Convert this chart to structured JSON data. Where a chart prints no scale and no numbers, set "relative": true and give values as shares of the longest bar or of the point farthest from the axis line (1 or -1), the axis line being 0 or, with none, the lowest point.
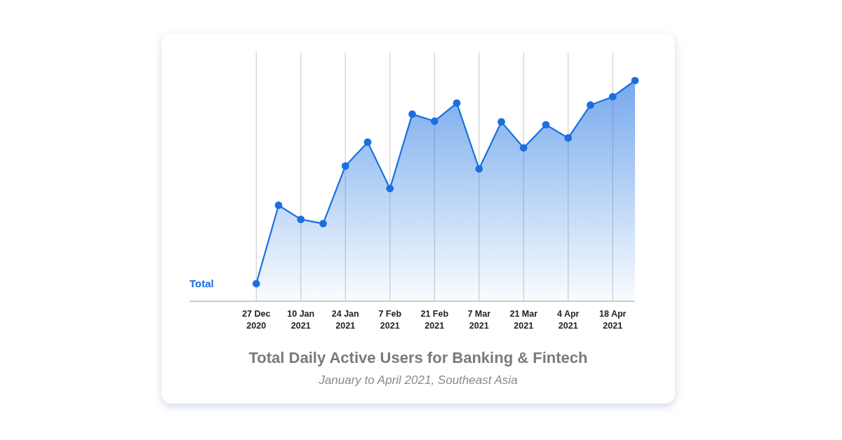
{
  "chart_data": {
    "type": "area",
    "title": "Total Daily Active Users for Banking & Fintech",
    "subtitle": "January to April 2021, Southeast Asia",
    "relative": true,
    "x": [
      "2020-12-27",
      "2021-01-03",
      "2021-01-10",
      "2021-01-17",
      "2021-01-24",
      "2021-01-31",
      "2021-02-07",
      "2021-02-14",
      "2021-02-21",
      "2021-02-28",
      "2021-03-07",
      "2021-03-14",
      "2021-03-21",
      "2021-03-28",
      "2021-04-04",
      "2021-04-11",
      "2021-04-18",
      "2021-04-25"
    ],
    "series": [
      {
        "name": "Total",
        "color": "#1a6fe0",
        "values": [
          0.08,
          0.435,
          0.371,
          0.352,
          0.613,
          0.721,
          0.511,
          0.848,
          0.816,
          0.898,
          0.6,
          0.813,
          0.695,
          0.8,
          0.74,
          0.889,
          0.927,
          1
        ]
      }
    ],
    "xlim": [
      "2020-12-06",
      "2021-04-25"
    ],
    "xticks": [
      {
        "value": "2020-12-27",
        "label": "27 Dec\n2020"
      },
      {
        "value": "2021-01-10",
        "label": "10 Jan\n2021"
      },
      {
        "value": "2021-01-24",
        "label": "24 Jan\n2021"
      },
      {
        "value": "2021-02-07",
        "label": "7 Feb\n2021"
      },
      {
        "value": "2021-02-21",
        "label": "21 Feb\n2021"
      },
      {
        "value": "2021-03-07",
        "label": "7 Mar\n2021"
      },
      {
        "value": "2021-03-21",
        "label": "21 Mar\n2021"
      },
      {
        "value": "2021-04-04",
        "label": "4 Apr\n2021"
      },
      {
        "value": "2021-04-18",
        "label": "18 Apr\n2021"
      }
    ],
    "grid": "x",
    "marker": "circle",
    "line_style": "solid"
  }
}
